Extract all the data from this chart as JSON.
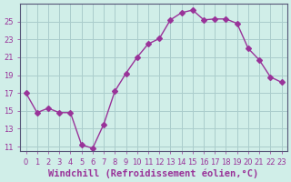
{
  "x": [
    0,
    1,
    2,
    3,
    4,
    5,
    6,
    7,
    8,
    9,
    10,
    11,
    12,
    13,
    14,
    15,
    16,
    17,
    18,
    19,
    20,
    21,
    22,
    23
  ],
  "y": [
    17.0,
    14.8,
    15.3,
    14.8,
    14.8,
    11.2,
    10.8,
    13.5,
    17.2,
    19.2,
    21.0,
    22.5,
    23.1,
    25.2,
    26.0,
    26.3,
    25.2,
    25.3,
    25.3,
    24.8,
    22.0,
    20.7,
    18.8,
    18.2
  ],
  "line_color": "#993399",
  "marker": "D",
  "markersize": 3,
  "bg_color": "#d0eee8",
  "grid_color": "#aacccc",
  "xlim": [
    -0.5,
    23.5
  ],
  "ylim": [
    10.5,
    27.0
  ],
  "yticks": [
    11,
    13,
    15,
    17,
    19,
    21,
    23,
    25
  ],
  "xticks": [
    0,
    1,
    2,
    3,
    4,
    5,
    6,
    7,
    8,
    9,
    10,
    11,
    12,
    13,
    14,
    15,
    16,
    17,
    18,
    19,
    20,
    21,
    22,
    23
  ],
  "xlabel": "Windchill (Refroidissement éolien,°C)",
  "xlabel_fontsize": 7.5,
  "tick_fontsize": 6,
  "tick_color": "#993399",
  "axis_color": "#555577"
}
